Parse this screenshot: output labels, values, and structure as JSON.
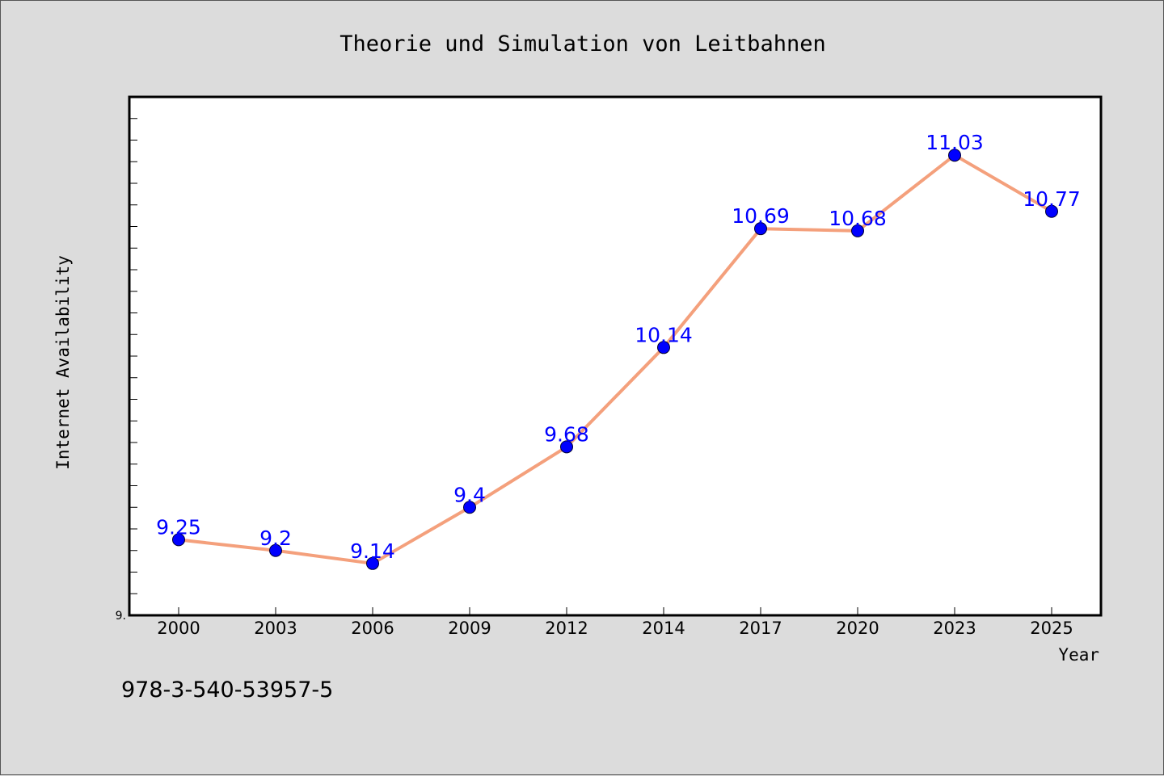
{
  "page": {
    "isbn": "978-3-540-53957-5"
  },
  "chart_data": {
    "type": "line",
    "title": "Theorie und Simulation von Leitbahnen",
    "xlabel": "Year",
    "ylabel": "Internet Availability",
    "categories": [
      "2000",
      "2003",
      "2006",
      "2009",
      "2012",
      "2014",
      "2017",
      "2020",
      "2023",
      "2025"
    ],
    "series": [
      {
        "values": [
          9.25,
          9.2,
          9.14,
          9.4,
          9.68,
          10.14,
          10.69,
          10.68,
          11.03,
          10.77
        ],
        "data_labels": [
          "9.25",
          "9.2",
          "9.14",
          "9.4",
          "9.68",
          "10.14",
          "10.69",
          "10.68",
          "11.03",
          "10.77"
        ],
        "line_color": "#f4a07c",
        "marker_color": "#0000ff",
        "label_color": "#0000ff"
      }
    ],
    "ylim": [
      8.9,
      11.3
    ],
    "y_tick_labels": [
      "9."
    ],
    "y_tick_label_value": 8.9,
    "y_minor_tick_step": 0.1,
    "grid": false,
    "legend": "none",
    "background": "#dcdcdc",
    "plot_background": "#ffffff"
  }
}
